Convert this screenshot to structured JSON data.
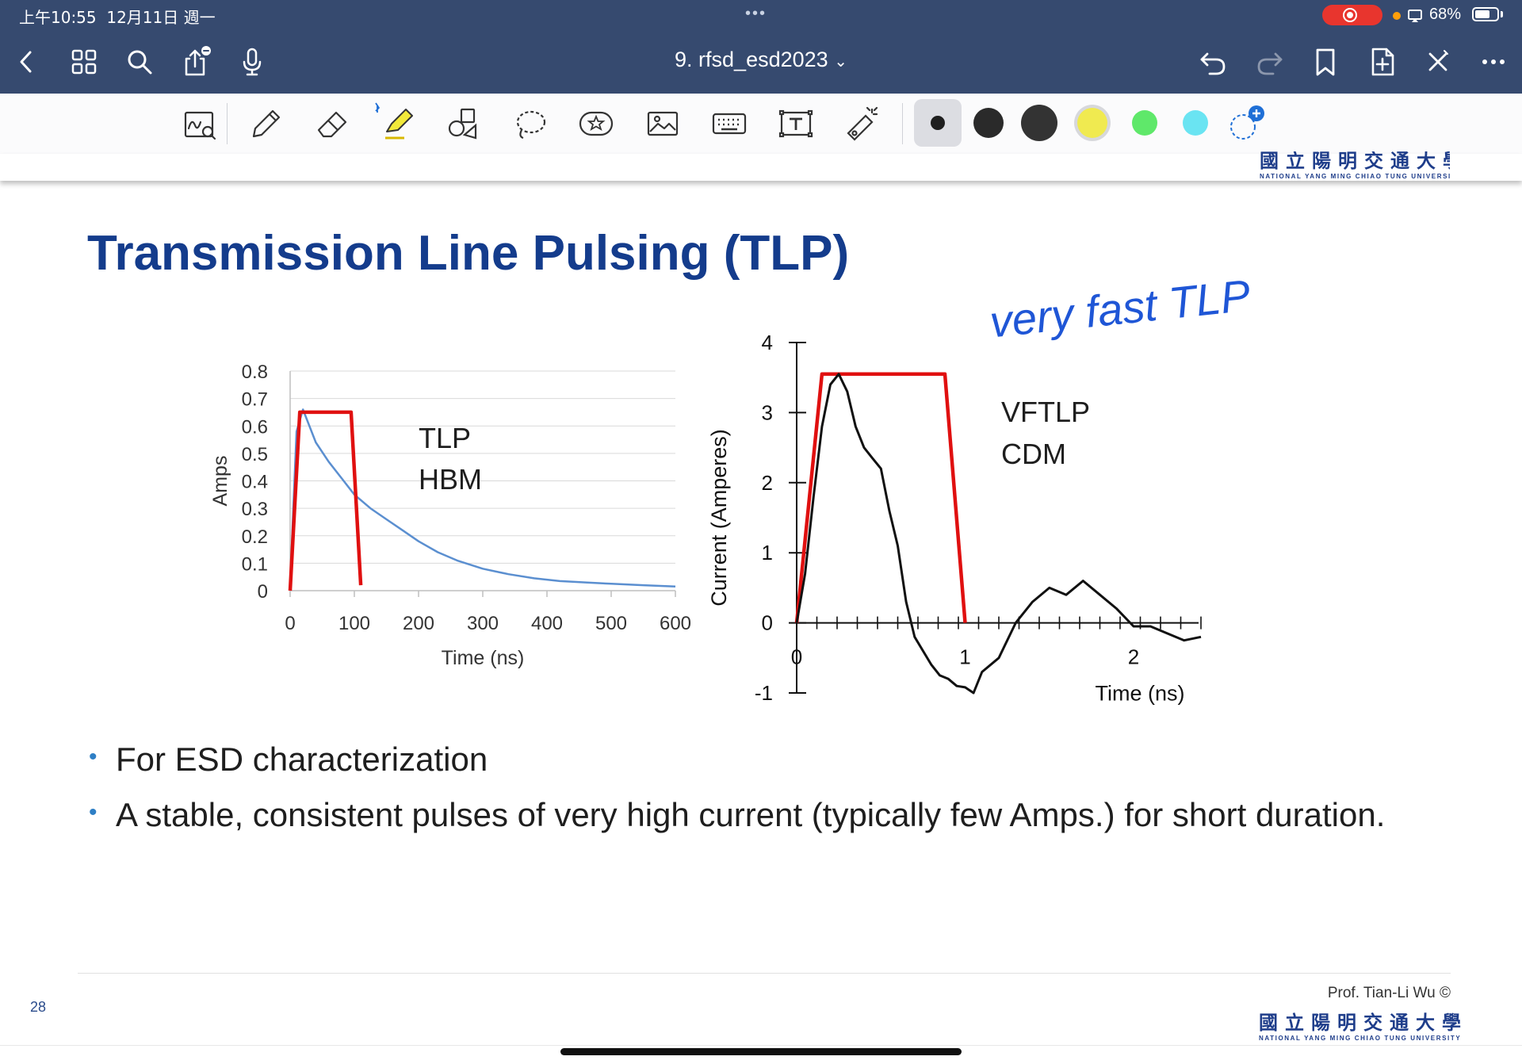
{
  "status_bar": {
    "time": "上午10:55",
    "date": "12月11日 週一",
    "dots": "•••",
    "battery_percent": "68%",
    "battery_level": 0.68,
    "recording_color": "#e8352e"
  },
  "nav": {
    "title": "9. rfsd_esd2023",
    "title_chevron": "⌄",
    "left_icons": [
      "back-icon",
      "thumbnails-icon",
      "search-icon",
      "share-icon",
      "microphone-icon"
    ],
    "right_icons": [
      "undo-icon",
      "redo-icon",
      "bookmark-icon",
      "add-page-icon",
      "close-tools-icon",
      "more-icon"
    ]
  },
  "toolbar": {
    "tools": [
      "handwriting-search-icon",
      "pen-icon",
      "eraser-icon",
      "highlighter-icon",
      "shapes-icon",
      "lasso-icon",
      "elements-icon",
      "image-icon",
      "keyboard-icon",
      "text-icon",
      "laser-pointer-icon"
    ],
    "colors": [
      "#1f1f1f",
      "#2a2a2a",
      "#333333",
      "#f0ea50",
      "#5fe86a",
      "#6ae4f2"
    ],
    "active_color": "#f0ea50"
  },
  "slide": {
    "title": "Transmission Line Pulsing (TLP)",
    "annotation": "very fast TLP",
    "annotation_color": "#1f56d6",
    "bullets": [
      "For ESD characterization",
      "A stable, consistent pulses of very high current (typically few Amps.) for short duration."
    ],
    "page_number": "28",
    "footer_author": "Prof. Tian-Li Wu ©",
    "logo_cn": "國立陽明交通大學",
    "logo_en": "NATIONAL YANG MING CHIAO TUNG UNIVERSITY"
  },
  "chart_data": [
    {
      "type": "line",
      "xlabel": "Time (ns)",
      "ylabel": "Amps",
      "xlim": [
        0,
        600
      ],
      "ylim": [
        0,
        0.8
      ],
      "xticks": [
        "0",
        "100",
        "200",
        "300",
        "400",
        "500",
        "600"
      ],
      "yticks": [
        "0",
        "0.1",
        "0.2",
        "0.3",
        "0.4",
        "0.5",
        "0.6",
        "0.7",
        "0.8"
      ],
      "grid": true,
      "annotations": [
        "TLP",
        "HBM"
      ],
      "series": [
        {
          "name": "TLP",
          "color": "#e01010",
          "x": [
            0,
            15,
            95,
            110
          ],
          "y": [
            0,
            0.65,
            0.65,
            0.02
          ]
        },
        {
          "name": "HBM",
          "color": "#5b8fd0",
          "x": [
            0,
            5,
            10,
            20,
            40,
            60,
            80,
            100,
            125,
            150,
            175,
            200,
            230,
            260,
            300,
            340,
            380,
            420,
            460,
            500,
            550,
            600
          ],
          "y": [
            0.01,
            0.3,
            0.58,
            0.66,
            0.54,
            0.47,
            0.41,
            0.35,
            0.3,
            0.26,
            0.22,
            0.18,
            0.14,
            0.11,
            0.08,
            0.06,
            0.045,
            0.035,
            0.03,
            0.025,
            0.02,
            0.015
          ]
        }
      ]
    },
    {
      "type": "line",
      "xlabel": "Time (ns)",
      "ylabel": "Current (Amperes)",
      "xlim": [
        0,
        2.4
      ],
      "ylim": [
        -1,
        4
      ],
      "xticks": [
        "0",
        "1",
        "2"
      ],
      "yticks": [
        "-1",
        "0",
        "1",
        "2",
        "3",
        "4"
      ],
      "grid": false,
      "annotations": [
        "VFTLP",
        "CDM"
      ],
      "series": [
        {
          "name": "VFTLP",
          "color": "#e01010",
          "x": [
            0,
            0.15,
            0.88,
            1.0
          ],
          "y": [
            0,
            3.55,
            3.55,
            0
          ]
        },
        {
          "name": "CDM",
          "color": "#111111",
          "x": [
            0,
            0.05,
            0.1,
            0.15,
            0.2,
            0.25,
            0.3,
            0.35,
            0.4,
            0.45,
            0.5,
            0.55,
            0.6,
            0.65,
            0.7,
            0.75,
            0.8,
            0.85,
            0.9,
            0.95,
            1.0,
            1.05,
            1.1,
            1.2,
            1.3,
            1.4,
            1.5,
            1.6,
            1.7,
            1.8,
            1.9,
            2.0,
            2.1,
            2.2,
            2.3,
            2.4
          ],
          "y": [
            0.0,
            0.7,
            1.8,
            2.8,
            3.4,
            3.55,
            3.3,
            2.8,
            2.5,
            2.35,
            2.2,
            1.6,
            1.1,
            0.3,
            -0.2,
            -0.4,
            -0.6,
            -0.75,
            -0.8,
            -0.9,
            -0.92,
            -1.0,
            -0.7,
            -0.5,
            0.0,
            0.3,
            0.5,
            0.4,
            0.6,
            0.4,
            0.2,
            -0.05,
            -0.05,
            -0.15,
            -0.25,
            -0.2
          ]
        }
      ]
    }
  ]
}
